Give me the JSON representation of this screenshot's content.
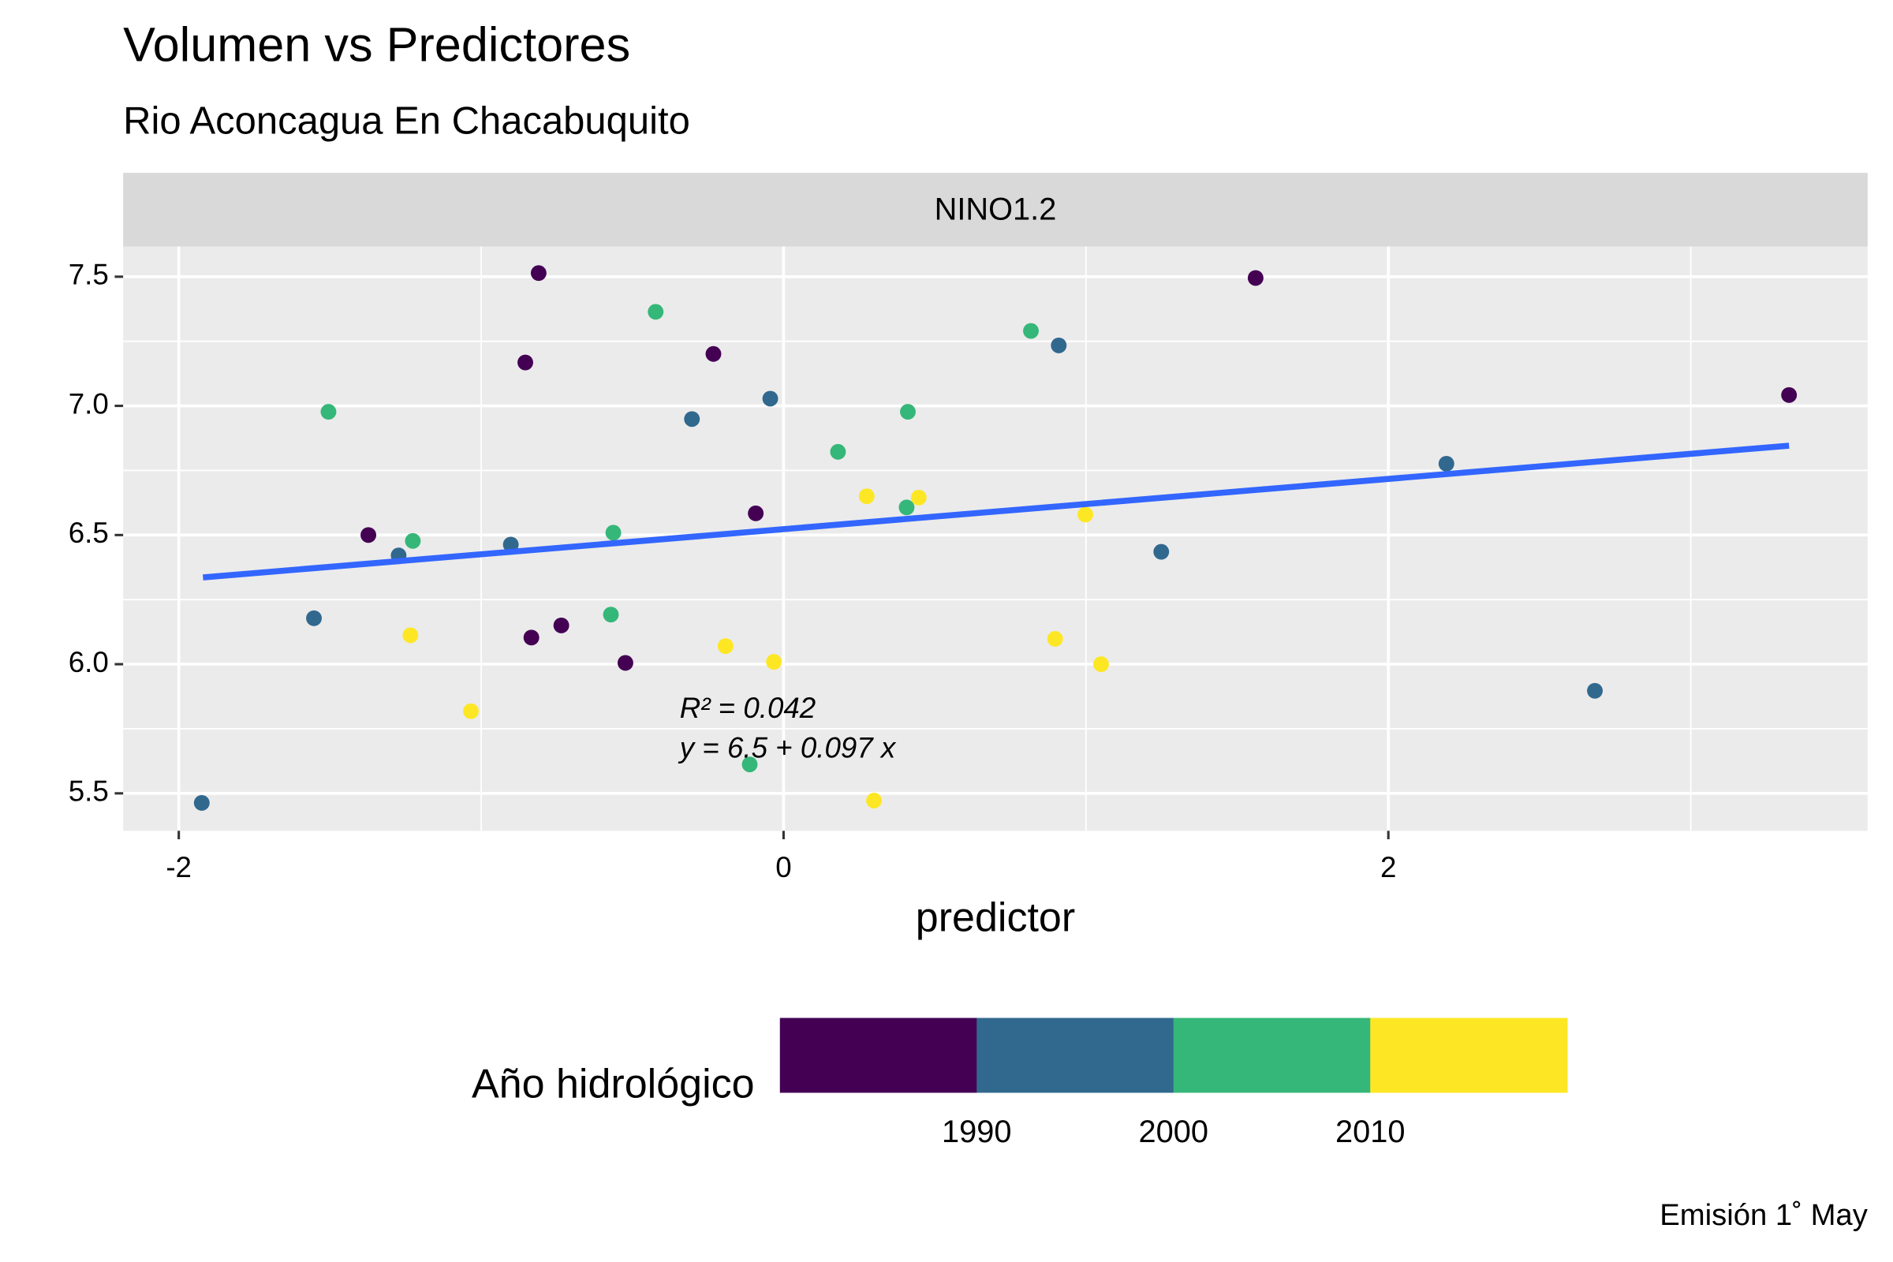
{
  "chart_data": {
    "type": "scatter",
    "title": "Volumen vs Predictores",
    "subtitle": "Rio Aconcagua En Chacabuquito",
    "facet": "NINO1.2",
    "xlabel": "predictor",
    "caption": "Emisión 1˚ May",
    "xlim": [
      -2.184,
      3.585
    ],
    "ylim": [
      5.355,
      7.617
    ],
    "xticks": [
      -2,
      0,
      2
    ],
    "yticks": [
      {
        "value": 5.5,
        "label": "5.5"
      },
      {
        "value": 6,
        "label": "6.0"
      },
      {
        "value": 6.5,
        "label": "6.5"
      },
      {
        "value": 7,
        "label": "7.0"
      },
      {
        "value": 7.5,
        "label": "7.5"
      }
    ],
    "grid": true,
    "series": [
      {
        "color": "#440154",
        "x": [
          -0.81,
          -0.854,
          -0.232,
          -1.373,
          -0.092,
          -0.834,
          -0.735,
          -0.523,
          1.561,
          3.325
        ],
        "values": [
          7.514,
          7.168,
          7.201,
          6.5,
          6.584,
          6.103,
          6.15,
          6.005,
          7.495,
          7.042
        ]
      },
      {
        "color": "#31688E",
        "x": [
          0.91,
          -0.044,
          -0.303,
          -1.273,
          -0.902,
          -1.553,
          -1.924,
          1.249,
          2.192,
          2.683
        ],
        "values": [
          7.234,
          7.028,
          6.949,
          6.421,
          6.463,
          6.178,
          5.463,
          6.435,
          6.776,
          5.897
        ]
      },
      {
        "color": "#35B779",
        "x": [
          -0.423,
          0.818,
          -1.505,
          0.411,
          0.18,
          -1.226,
          -0.563,
          0.407,
          -0.571,
          -0.112
        ],
        "values": [
          7.364,
          7.29,
          6.977,
          6.977,
          6.822,
          6.477,
          6.509,
          6.607,
          6.192,
          5.612
        ]
      },
      {
        "color": "#FDE725",
        "x": [
          0.275,
          0.447,
          0.998,
          -1.234,
          -0.192,
          -0.032,
          0.898,
          1.05,
          -1.034,
          0.299
        ],
        "values": [
          6.65,
          6.645,
          6.579,
          6.112,
          6.07,
          6.009,
          6.098,
          6.0,
          5.818,
          5.472
        ]
      }
    ],
    "fit": {
      "color": "#3366FF",
      "x": [
        -1.92,
        3.325
      ],
      "values": [
        6.336,
        6.846
      ]
    },
    "annotations": [
      "R² = 0.042",
      "y = 6.5 + 0.097 x"
    ],
    "legend": {
      "title": "Año hidrológico",
      "colors": [
        "#440154",
        "#31688E",
        "#35B779",
        "#FDE725"
      ],
      "breaks": [
        1990,
        2000,
        2010
      ]
    }
  }
}
